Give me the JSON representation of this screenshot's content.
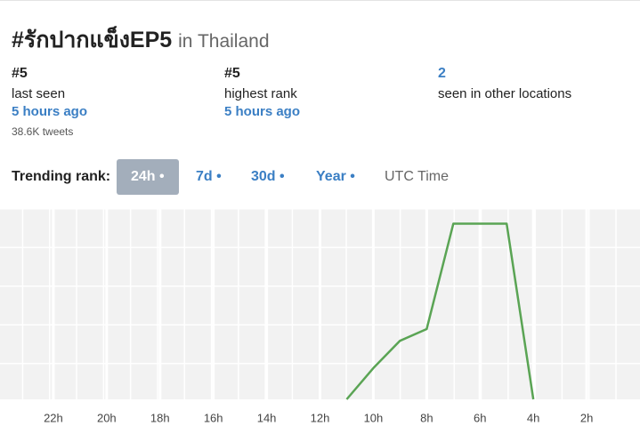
{
  "header": {
    "title": "#รักปากแข็งEP5",
    "location": "in Thailand"
  },
  "stats": [
    {
      "value": "#5",
      "label": "last seen",
      "time": "5 hours ago",
      "extra": "38.6K tweets"
    },
    {
      "value": "#5",
      "label": "highest rank",
      "time": "5 hours ago"
    },
    {
      "value": "2",
      "label": "seen in other locations"
    }
  ],
  "tabs": {
    "label": "Trending rank:",
    "items": [
      "24h •",
      "7d •",
      "30d •",
      "Year •"
    ],
    "active": 0,
    "timezone": "UTC Time"
  },
  "chart_data": {
    "type": "line",
    "x": [
      11,
      10,
      9,
      8,
      7,
      5,
      4
    ],
    "values": [
      50,
      42,
      35,
      32,
      5,
      5,
      50
    ],
    "color": "#5aa454",
    "xlim": [
      24,
      0
    ],
    "ylim": [
      50,
      1
    ],
    "xticks": [
      {
        "value": 22,
        "label": "22h"
      },
      {
        "value": 20,
        "label": "20h"
      },
      {
        "value": 18,
        "label": "18h"
      },
      {
        "value": 16,
        "label": "16h"
      },
      {
        "value": 14,
        "label": "14h"
      },
      {
        "value": 12,
        "label": "12h"
      },
      {
        "value": 10,
        "label": "10h"
      },
      {
        "value": 8,
        "label": "8h"
      },
      {
        "value": 6,
        "label": "6h"
      },
      {
        "value": 4,
        "label": "4h"
      },
      {
        "value": 2,
        "label": "2h"
      }
    ]
  }
}
